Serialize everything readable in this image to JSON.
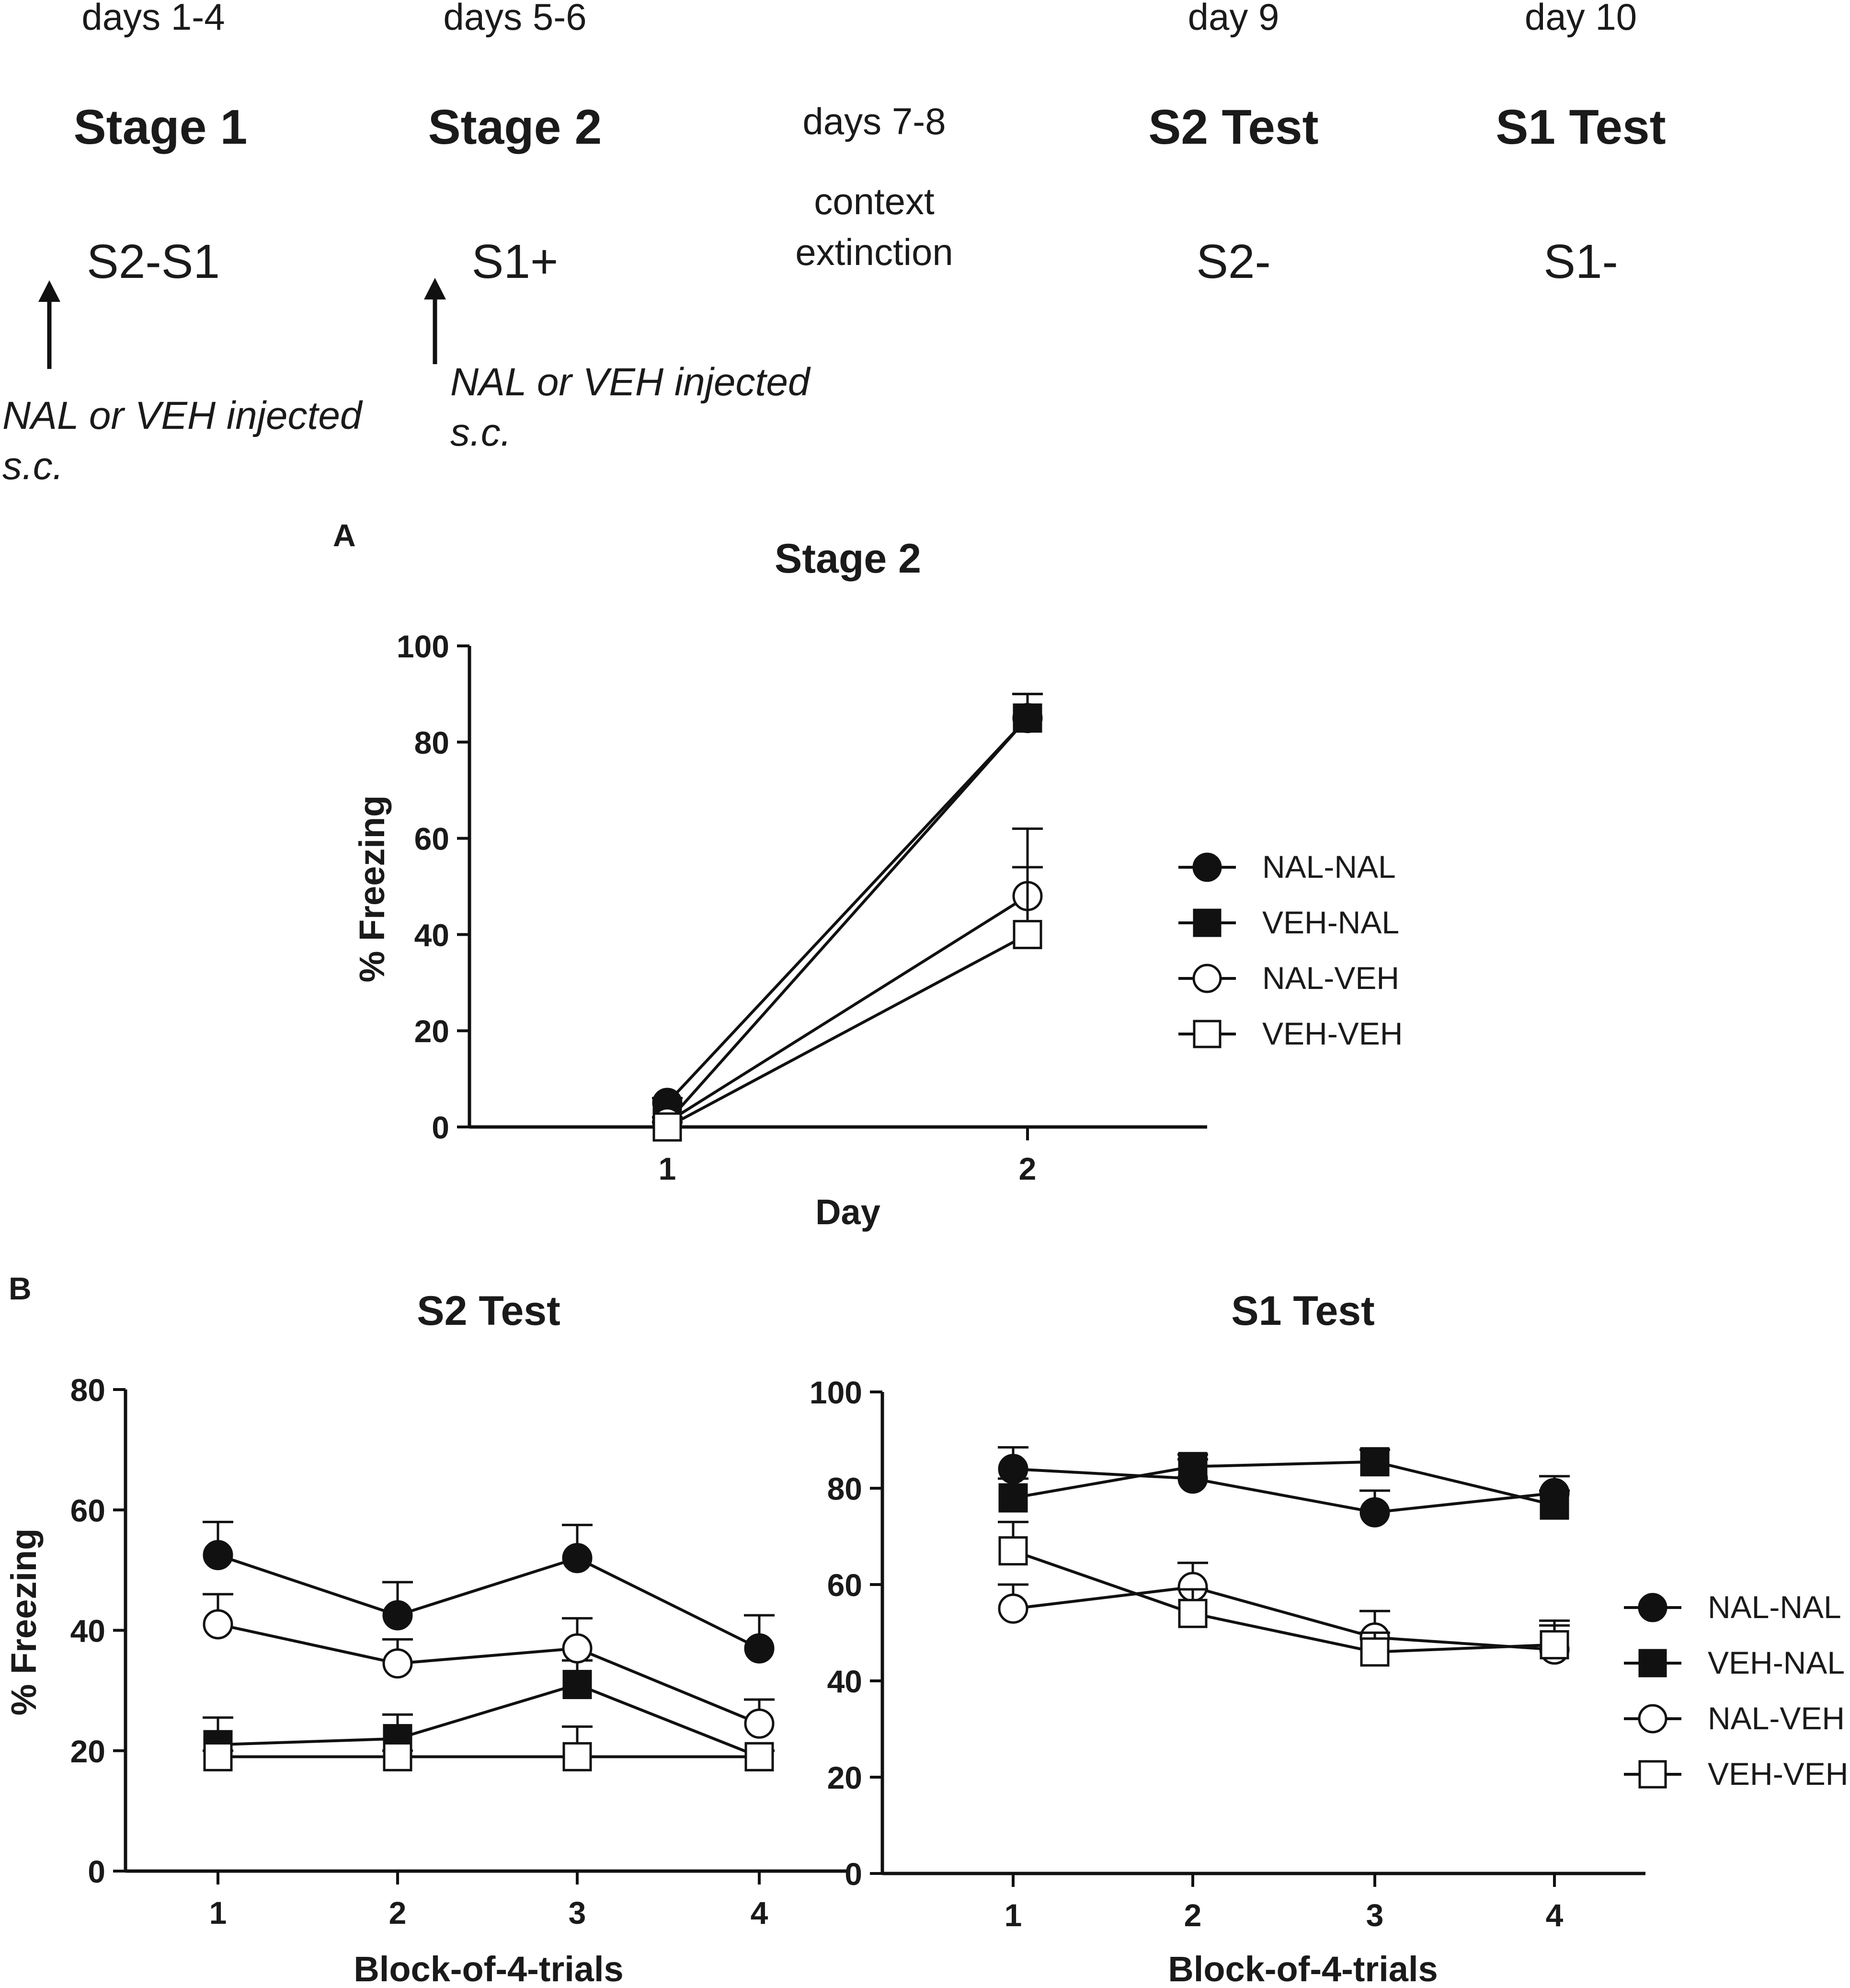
{
  "timeline": {
    "stages": [
      {
        "days": "days 1-4",
        "title": "Stage 1",
        "stimulus": "S2-S1"
      },
      {
        "days": "days 5-6",
        "title": "Stage 2",
        "stimulus": "S1+"
      },
      {
        "days": "days 7-8",
        "title": "",
        "stimulus": ""
      },
      {
        "days": "day 9",
        "title": "S2 Test",
        "stimulus": "S2-"
      },
      {
        "days": "day 10",
        "title": "S1 Test",
        "stimulus": "S1-"
      }
    ],
    "context_line1": "context",
    "context_line2": "extinction",
    "injection_line1": "NAL or VEH injected",
    "injection_line2": "s.c."
  },
  "panel_labels": {
    "a": "A",
    "b": "B"
  },
  "legend": [
    "NAL-NAL",
    "VEH-NAL",
    "NAL-VEH",
    "VEH-VEH"
  ],
  "chart_data": [
    {
      "id": "stage2",
      "type": "line",
      "title": "Stage 2",
      "xlabel": "Day",
      "ylabel": "% Freezing",
      "x": [
        1,
        2
      ],
      "ylim": [
        0,
        100
      ],
      "yticks": [
        0,
        20,
        40,
        60,
        80,
        100
      ],
      "series": [
        {
          "name": "NAL-NAL",
          "marker": "filled-circle",
          "values": [
            5,
            85
          ],
          "errors": [
            1,
            5
          ]
        },
        {
          "name": "VEH-NAL",
          "marker": "filled-square",
          "values": [
            1,
            85
          ],
          "errors": [
            1,
            5
          ]
        },
        {
          "name": "NAL-VEH",
          "marker": "open-circle",
          "values": [
            1,
            48
          ],
          "errors": [
            1,
            14
          ]
        },
        {
          "name": "VEH-VEH",
          "marker": "open-square",
          "values": [
            0,
            40
          ],
          "errors": [
            1,
            14
          ]
        }
      ]
    },
    {
      "id": "s2test",
      "type": "line",
      "title": "S2 Test",
      "xlabel": "Block-of-4-trials",
      "ylabel": "% Freezing",
      "x": [
        1,
        2,
        3,
        4
      ],
      "ylim": [
        0,
        80
      ],
      "yticks": [
        0,
        20,
        40,
        60,
        80
      ],
      "series": [
        {
          "name": "NAL-NAL",
          "marker": "filled-circle",
          "values": [
            52.5,
            42.5,
            52,
            37
          ],
          "errors": [
            5.5,
            5.5,
            5.5,
            5.5
          ]
        },
        {
          "name": "VEH-NAL",
          "marker": "filled-square",
          "values": [
            21,
            22,
            31,
            19
          ],
          "errors": [
            4.5,
            4,
            4,
            1
          ]
        },
        {
          "name": "NAL-VEH",
          "marker": "open-circle",
          "values": [
            41,
            34.5,
            37,
            24.5
          ],
          "errors": [
            5,
            4,
            5,
            4
          ]
        },
        {
          "name": "VEH-VEH",
          "marker": "open-square",
          "values": [
            19,
            19,
            19,
            19
          ],
          "errors": [
            1,
            1,
            5,
            1
          ]
        }
      ]
    },
    {
      "id": "s1test",
      "type": "line",
      "title": "S1 Test",
      "xlabel": "Block-of-4-trials",
      "ylabel": "",
      "x": [
        1,
        2,
        3,
        4
      ],
      "ylim": [
        0,
        100
      ],
      "yticks": [
        0,
        20,
        40,
        60,
        80,
        100
      ],
      "series": [
        {
          "name": "NAL-NAL",
          "marker": "filled-circle",
          "values": [
            84,
            82,
            75,
            79
          ],
          "errors": [
            4.5,
            4,
            4.5,
            3.5
          ]
        },
        {
          "name": "VEH-NAL",
          "marker": "filled-square",
          "values": [
            78,
            84.5,
            85.5,
            76.5
          ],
          "errors": [
            4,
            2.5,
            2.5,
            3
          ]
        },
        {
          "name": "NAL-VEH",
          "marker": "open-circle",
          "values": [
            55,
            59.5,
            49,
            46.5
          ],
          "errors": [
            5,
            5,
            5.5,
            5
          ]
        },
        {
          "name": "VEH-VEH",
          "marker": "open-square",
          "values": [
            67,
            54,
            46,
            47.5
          ],
          "errors": [
            6,
            5,
            4,
            5
          ]
        }
      ]
    }
  ]
}
